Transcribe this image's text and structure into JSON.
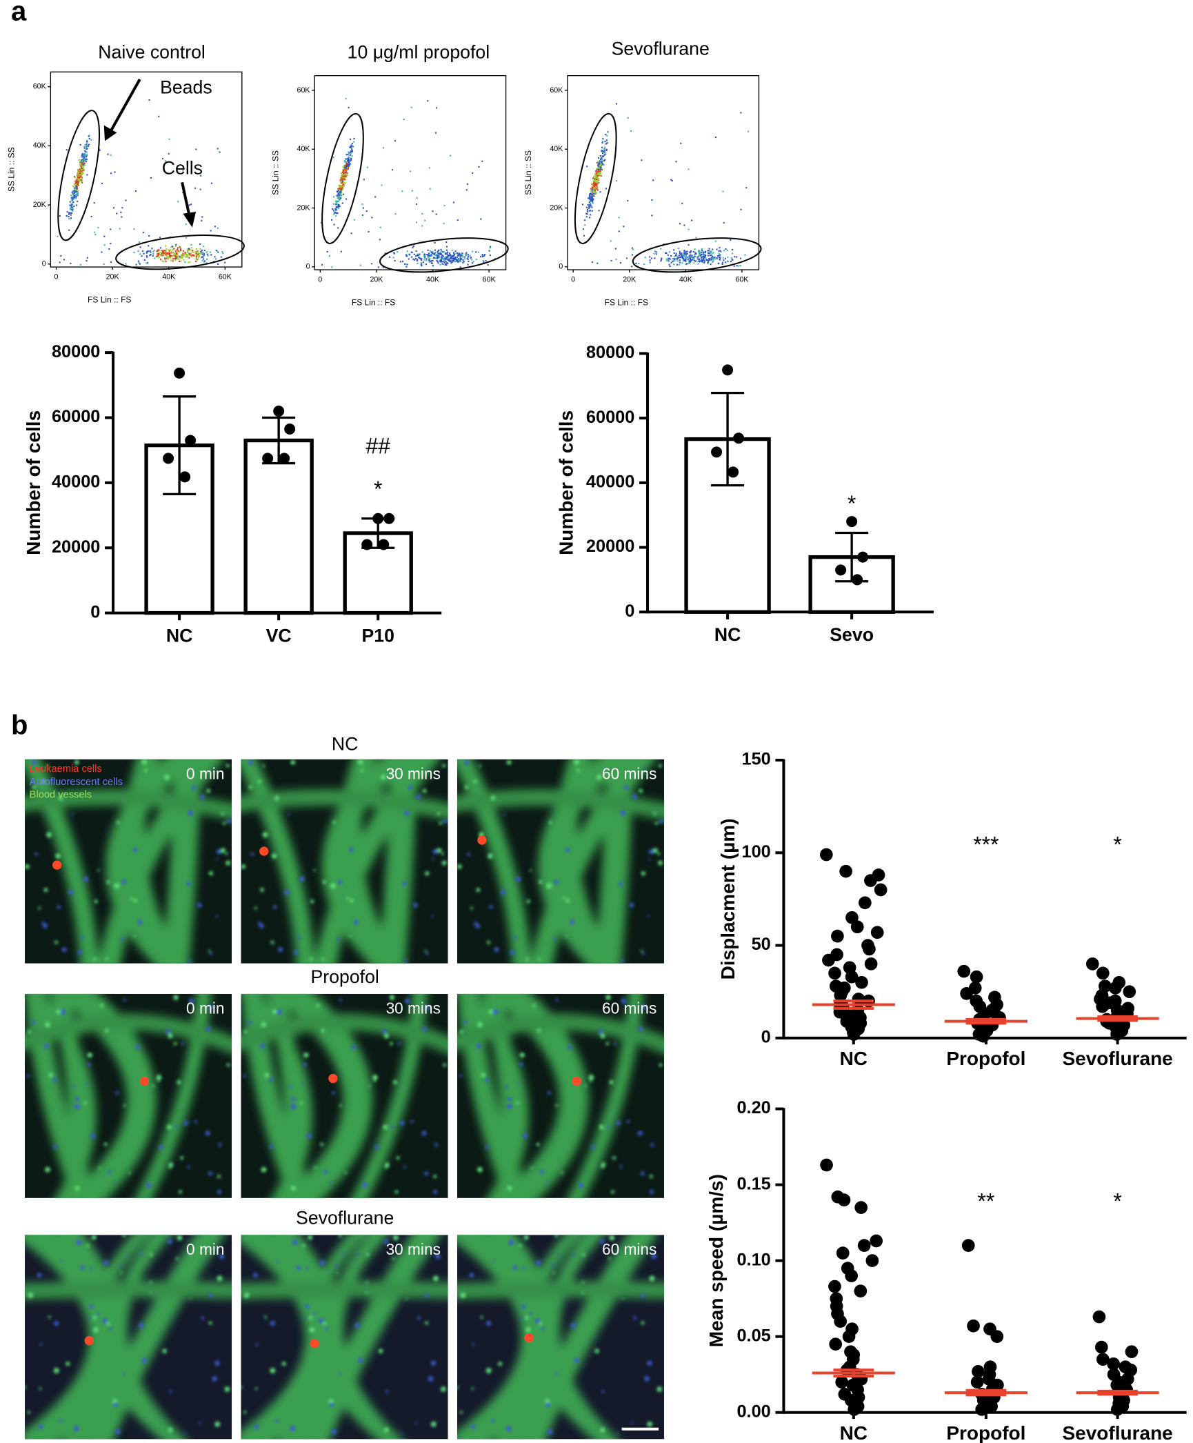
{
  "panel_labels": [
    "a",
    "b"
  ],
  "microscopy": {
    "legend": [
      "Leukaemia cells",
      "Autofluorescent cells",
      "Blood vessels"
    ],
    "rows": [
      "NC",
      "Propofol",
      "Sevoflurane"
    ],
    "times": [
      "0 min",
      "30 mins",
      "60 mins"
    ]
  },
  "chart_data": [
    {
      "type": "flow",
      "title": "Naive control",
      "xlabel": "FS Lin :: FS",
      "ylabel": "SS Lin :: SS",
      "xlim": [
        -2000,
        66000
      ],
      "ylim": [
        -1000,
        65000
      ],
      "xticks": [
        0,
        {
          "value": 20000,
          "label": "20K"
        },
        {
          "value": 40000,
          "label": "40K"
        },
        {
          "value": 60000,
          "label": "60K"
        }
      ],
      "yticks": [
        0,
        {
          "value": 20000,
          "label": "20K"
        },
        {
          "value": 40000,
          "label": "40K"
        },
        {
          "value": 60000,
          "label": "60K"
        }
      ],
      "annotations": [
        "Beads",
        "Cells"
      ]
    },
    {
      "type": "flow",
      "title": "10 μg/ml propofol",
      "xlabel": "FS Lin :: FS",
      "ylabel": "SS Lin :: SS",
      "xlim": [
        -2000,
        66000
      ],
      "ylim": [
        -1000,
        65000
      ],
      "xticks": [
        0,
        {
          "value": 20000,
          "label": "20K"
        },
        {
          "value": 40000,
          "label": "40K"
        },
        {
          "value": 60000,
          "label": "60K"
        }
      ],
      "yticks": [
        0,
        {
          "value": 20000,
          "label": "20K"
        },
        {
          "value": 40000,
          "label": "40K"
        },
        {
          "value": 60000,
          "label": "60K"
        }
      ]
    },
    {
      "type": "flow",
      "title": "Sevoflurane",
      "xlabel": "FS Lin :: FS",
      "ylabel": "SS Lin :: SS",
      "xlim": [
        -2000,
        66000
      ],
      "ylim": [
        -1000,
        65000
      ],
      "xticks": [
        0,
        {
          "value": 20000,
          "label": "20K"
        },
        {
          "value": 40000,
          "label": "40K"
        },
        {
          "value": 60000,
          "label": "60K"
        }
      ],
      "yticks": [
        0,
        {
          "value": 20000,
          "label": "20K"
        },
        {
          "value": 40000,
          "label": "40K"
        },
        {
          "value": 60000,
          "label": "60K"
        }
      ]
    },
    {
      "type": "bar",
      "ylabel": "Number of cells",
      "categories": [
        "NC",
        "VC",
        "P10"
      ],
      "values": [
        51500,
        53000,
        24500
      ],
      "errors": [
        15000,
        7000,
        4500
      ],
      "points": [
        [
          73700,
          53000,
          47500,
          41800
        ],
        [
          62000,
          56500,
          47500,
          47500
        ],
        [
          29000,
          29000,
          21000,
          21000
        ]
      ],
      "ylim": [
        0,
        80000
      ],
      "yticks": [
        0,
        20000,
        40000,
        60000,
        80000
      ],
      "annotations": [
        {
          "category": 2,
          "texts": [
            "##",
            "*"
          ]
        }
      ]
    },
    {
      "type": "bar",
      "ylabel": "Number of cells",
      "categories": [
        "NC",
        "Sevo"
      ],
      "values": [
        53500,
        17000
      ],
      "errors": [
        14300,
        7500
      ],
      "points": [
        [
          74900,
          53800,
          49500,
          43300
        ],
        [
          28000,
          17000,
          13000,
          10000
        ]
      ],
      "ylim": [
        0,
        80000
      ],
      "yticks": [
        0,
        20000,
        40000,
        60000,
        80000
      ],
      "annotations": [
        {
          "category": 1,
          "texts": [
            "*"
          ]
        }
      ]
    },
    {
      "type": "dot",
      "ylabel": "Displacment (µm)",
      "categories": [
        "NC",
        "Propofol",
        "Sevoflurane"
      ],
      "points": [
        [
          99,
          90,
          88,
          85,
          80,
          73,
          65,
          60,
          57,
          55,
          50,
          48,
          45,
          42,
          40,
          38,
          35,
          33,
          30,
          28,
          27,
          25,
          23,
          21,
          20,
          18,
          17,
          15,
          14,
          12,
          11,
          10,
          9,
          8,
          7,
          6,
          5,
          4,
          3,
          2
        ],
        [
          36,
          33,
          27,
          24,
          22,
          20,
          18,
          17,
          15,
          14,
          13,
          12,
          11,
          10,
          9,
          8,
          7,
          6,
          5,
          4,
          3,
          2,
          1
        ],
        [
          40,
          35,
          30,
          28,
          27,
          25,
          23,
          21,
          20,
          19,
          18,
          17,
          16,
          15,
          14,
          13,
          12,
          11,
          10,
          9,
          8,
          7,
          6,
          5,
          4,
          3,
          2
        ]
      ],
      "means": [
        18,
        9,
        10.5
      ],
      "sems": [
        2,
        1,
        1
      ],
      "mean_color": "#e8412c",
      "ylim": [
        0,
        150
      ],
      "yticks": [
        0,
        50,
        100,
        150
      ],
      "annotations": [
        "",
        "***",
        "*"
      ]
    },
    {
      "type": "dot",
      "ylabel": "Mean speed (µm/s)",
      "categories": [
        "NC",
        "Propofol",
        "Sevoflurane"
      ],
      "points": [
        [
          0.163,
          0.142,
          0.14,
          0.135,
          0.113,
          0.11,
          0.105,
          0.1,
          0.095,
          0.09,
          0.083,
          0.08,
          0.075,
          0.07,
          0.065,
          0.06,
          0.055,
          0.05,
          0.045,
          0.04,
          0.038,
          0.035,
          0.03,
          0.028,
          0.025,
          0.022,
          0.02,
          0.018,
          0.015,
          0.012,
          0.01,
          0.008,
          0.006,
          0.004,
          0.002
        ],
        [
          0.11,
          0.057,
          0.055,
          0.05,
          0.03,
          0.027,
          0.025,
          0.022,
          0.02,
          0.018,
          0.015,
          0.012,
          0.01,
          0.008,
          0.006,
          0.004,
          0.002
        ],
        [
          0.063,
          0.043,
          0.04,
          0.035,
          0.032,
          0.03,
          0.028,
          0.025,
          0.022,
          0.02,
          0.018,
          0.015,
          0.012,
          0.01,
          0.008,
          0.006,
          0.004,
          0.002
        ]
      ],
      "means": [
        0.026,
        0.013,
        0.013
      ],
      "sems": [
        0.002,
        0.0015,
        0.001
      ],
      "mean_color": "#e8412c",
      "ylim": [
        0,
        0.2
      ],
      "yticks": [
        {
          "value": 0,
          "label": "0.00"
        },
        0.05,
        {
          "value": 0.1,
          "label": "0.10"
        },
        0.15,
        {
          "value": 0.2,
          "label": "0.20"
        }
      ],
      "annotations": [
        "",
        "**",
        "*"
      ]
    }
  ]
}
